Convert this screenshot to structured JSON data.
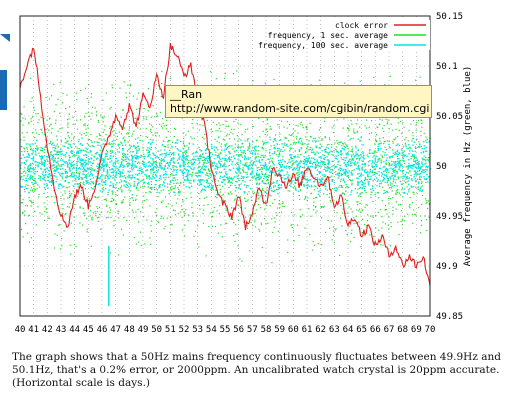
{
  "top_text_fragment": "...",
  "tooltip": {
    "title": "__Ran",
    "url": "http://www.random-site.com/cgibin/random.cgi"
  },
  "caption": "The graph shows that a 50Hz mains frequency continuously fluctuates between 49.9Hz and 50.1Hz, that's a 0.2% error, or 2000ppm. An uncalibrated watch crystal is 20ppm accurate. (Horizontal scale is days.)",
  "chart_data": {
    "type": "line",
    "title": "",
    "xlabel": "",
    "ylabel": "Average frequency in Hz (green, blue)",
    "xlim": [
      40,
      70
    ],
    "ylim": [
      49.85,
      50.15
    ],
    "x_ticks": [
      "40",
      "41",
      "42",
      "43",
      "44",
      "45",
      "46",
      "47",
      "48",
      "49",
      "50",
      "51",
      "52",
      "53",
      "54",
      "55",
      "56",
      "57",
      "58",
      "59",
      "60",
      "61",
      "62",
      "63",
      "64",
      "65",
      "66",
      "67",
      "68",
      "69",
      "70"
    ],
    "y_ticks": [
      "49.85",
      "49.9",
      "49.95",
      "50",
      "50.05",
      "50.1",
      "50.15"
    ],
    "grid": true,
    "legend_position": "top-right",
    "colors": {
      "clock_error": "#e02020",
      "freq_1s": "#22dd22",
      "freq_100s": "#00e6e6"
    },
    "series": [
      {
        "name": "clock error",
        "style": "line",
        "x": [
          40,
          40.5,
          41,
          41.5,
          42,
          42.5,
          43,
          43.5,
          44,
          44.5,
          45,
          45.5,
          46,
          46.5,
          47,
          47.5,
          48,
          48.5,
          49,
          49.5,
          50,
          50.5,
          51,
          51.5,
          52,
          52.5,
          53,
          53.5,
          54,
          54.5,
          55,
          55.5,
          56,
          56.5,
          57,
          57.5,
          58,
          58.5,
          59,
          59.5,
          60,
          60.5,
          61,
          61.5,
          62,
          62.5,
          63,
          63.5,
          64,
          64.5,
          65,
          65.5,
          66,
          66.5,
          67,
          67.5,
          68,
          68.5,
          69,
          69.5,
          70
        ],
        "values": [
          50.08,
          50.1,
          50.12,
          50.07,
          50.02,
          49.98,
          49.95,
          49.94,
          49.97,
          49.98,
          49.96,
          49.98,
          50.01,
          50.03,
          50.05,
          50.04,
          50.06,
          50.04,
          50.07,
          50.06,
          50.09,
          50.07,
          50.12,
          50.11,
          50.09,
          50.1,
          50.07,
          50.04,
          50.0,
          49.97,
          49.96,
          49.95,
          49.97,
          49.94,
          49.95,
          49.98,
          49.96,
          50.0,
          49.99,
          49.98,
          49.99,
          49.98,
          50.0,
          49.99,
          49.98,
          49.99,
          49.96,
          49.97,
          49.94,
          49.95,
          49.93,
          49.94,
          49.92,
          49.93,
          49.91,
          49.92,
          49.9,
          49.91,
          49.9,
          49.91,
          49.88
        ]
      },
      {
        "name": "frequency, 1 sec. average",
        "style": "points",
        "center": 50.0,
        "spread": 0.11
      },
      {
        "name": "frequency, 100 sec. average",
        "style": "band",
        "center": 50.0,
        "spread": 0.03
      }
    ]
  }
}
